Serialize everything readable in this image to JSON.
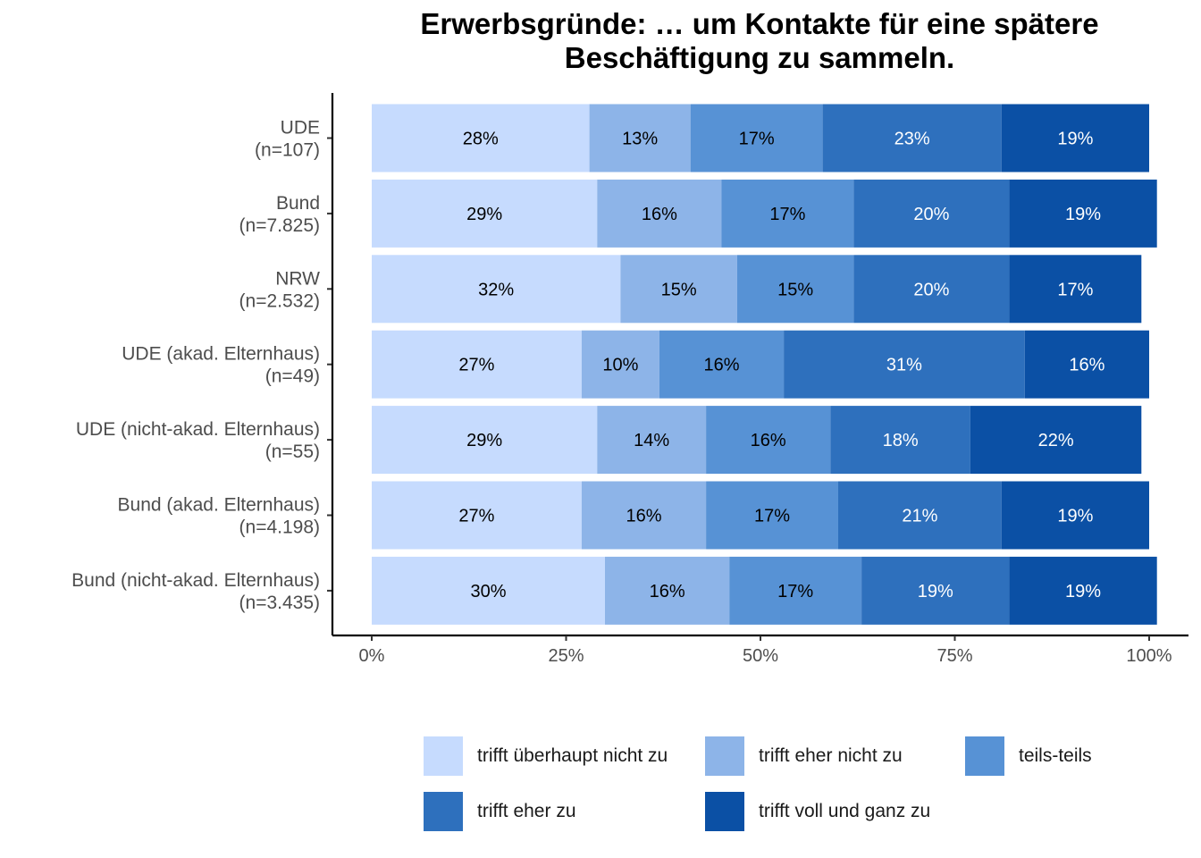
{
  "chart_data": {
    "type": "bar",
    "orientation": "horizontal",
    "stacked": true,
    "title_lines": [
      "Erwerbsgründe: … um Kontakte für eine spätere",
      "Beschäftigung zu sammeln."
    ],
    "categories": [
      {
        "label": "UDE",
        "n": "(n=107)"
      },
      {
        "label": "Bund",
        "n": "(n=7.825)"
      },
      {
        "label": "NRW",
        "n": "(n=2.532)"
      },
      {
        "label": "UDE (akad. Elternhaus)",
        "n": "(n=49)"
      },
      {
        "label": "UDE (nicht-akad. Elternhaus)",
        "n": "(n=55)"
      },
      {
        "label": "Bund (akad. Elternhaus)",
        "n": "(n=4.198)"
      },
      {
        "label": "Bund (nicht-akad. Elternhaus)",
        "n": "(n=3.435)"
      }
    ],
    "series": [
      {
        "name": "trifft überhaupt nicht zu",
        "color": "#c6dbfe",
        "label_color": "#000000",
        "values": [
          28,
          29,
          32,
          27,
          29,
          27,
          30
        ],
        "labels": [
          "28%",
          "29%",
          "32%",
          "27%",
          "29%",
          "27%",
          "30%"
        ]
      },
      {
        "name": "trifft eher nicht zu",
        "color": "#8db4e8",
        "label_color": "#000000",
        "values": [
          13,
          16,
          15,
          10,
          14,
          16,
          16
        ],
        "labels": [
          "13%",
          "16%",
          "15%",
          "10%",
          "14%",
          "16%",
          "16%"
        ]
      },
      {
        "name": "teils-teils",
        "color": "#5792d5",
        "label_color": "#000000",
        "values": [
          17,
          17,
          15,
          16,
          16,
          17,
          17
        ],
        "labels": [
          "17%",
          "17%",
          "15%",
          "16%",
          "16%",
          "17%",
          "17%"
        ]
      },
      {
        "name": "trifft eher zu",
        "color": "#2e70bd",
        "label_color": "#ffffff",
        "values": [
          23,
          20,
          20,
          31,
          18,
          21,
          19
        ],
        "labels": [
          "23%",
          "20%",
          "20%",
          "31%",
          "18%",
          "21%",
          "19%"
        ]
      },
      {
        "name": "trifft voll und ganz zu",
        "color": "#0b50a5",
        "label_color": "#ffffff",
        "values": [
          19,
          19,
          17,
          16,
          22,
          19,
          19
        ],
        "labels": [
          "19%",
          "19%",
          "17%",
          "16%",
          "22%",
          "19%",
          "19%"
        ]
      }
    ],
    "x_ticks": [
      "0%",
      "25%",
      "50%",
      "75%",
      "100%"
    ],
    "xlim": [
      0,
      100
    ],
    "xlabel": "",
    "ylabel": "",
    "legend_position": "bottom",
    "grid": false
  }
}
